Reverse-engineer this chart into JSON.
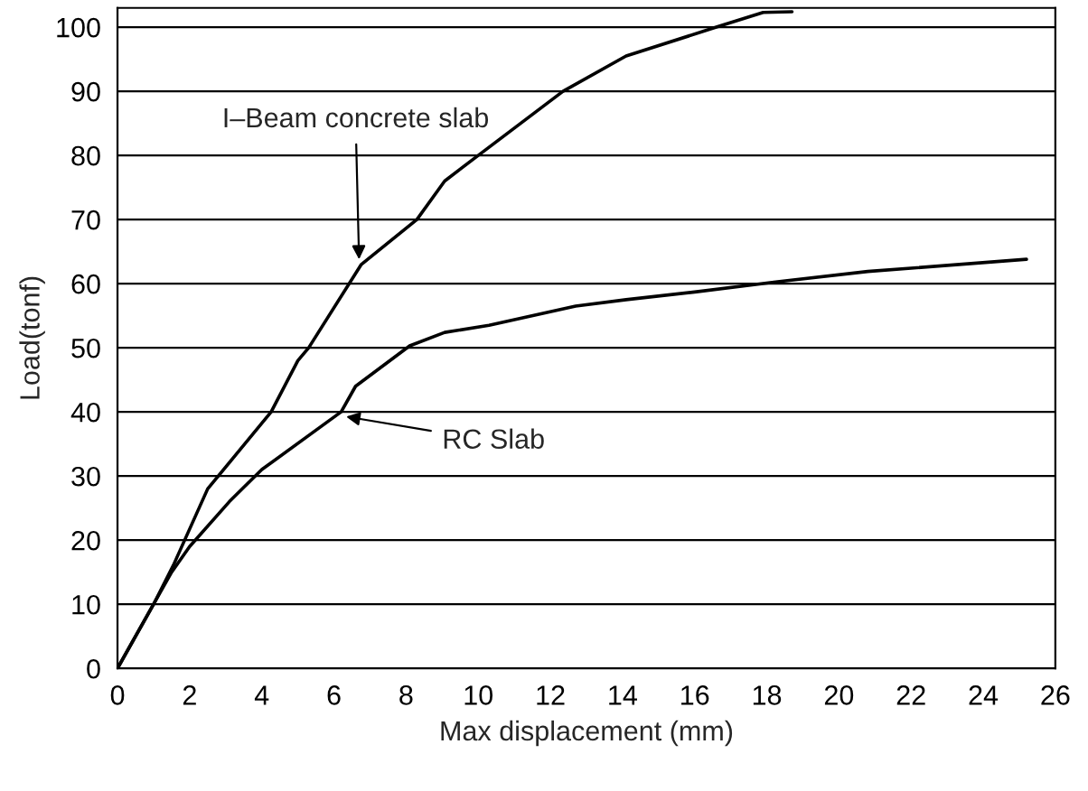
{
  "chart_data": {
    "type": "line",
    "xlabel": "Max displacement (mm)",
    "ylabel": "Load(tonf)",
    "xlim": [
      0,
      26
    ],
    "xticks": [
      0,
      2,
      4,
      6,
      8,
      10,
      12,
      14,
      16,
      18,
      20,
      22,
      24,
      26
    ],
    "ylim": [
      0,
      103
    ],
    "yticks": [
      0,
      10,
      20,
      30,
      40,
      50,
      60,
      70,
      80,
      90,
      100
    ],
    "grid": "y",
    "legend": false,
    "marker": "none",
    "line_style": "solid",
    "series": [
      {
        "color": "#000000",
        "x": [
          0,
          1.0,
          1.55,
          2.5,
          4.26,
          5.0,
          5.3,
          6.76,
          8.3,
          9.07,
          10.0,
          12.35,
          14.1,
          16.6,
          17.9,
          18.7
        ],
        "values": [
          0,
          10,
          16.1,
          28,
          40,
          48,
          50,
          63,
          70,
          76,
          80,
          90,
          95.5,
          100,
          102.3,
          102.4
        ]
      },
      {
        "color": "#000000",
        "x": [
          0,
          1.0,
          1.5,
          2.0,
          3.1,
          4.0,
          6.2,
          6.6,
          8.1,
          9.07,
          10.3,
          12.7,
          14.1,
          16.0,
          18.3,
          20.8,
          25.2
        ],
        "values": [
          0,
          10,
          15,
          19,
          26,
          31,
          40,
          44,
          50.3,
          52.4,
          53.5,
          56.5,
          57.5,
          58.7,
          60.3,
          61.9,
          63.8
        ]
      }
    ],
    "annotations": [
      {
        "text": "I–Beam concrete slab",
        "x": 6.7,
        "y": 63
      },
      {
        "text": "RC Slab",
        "x": 6.2,
        "y": 39.4
      }
    ]
  }
}
